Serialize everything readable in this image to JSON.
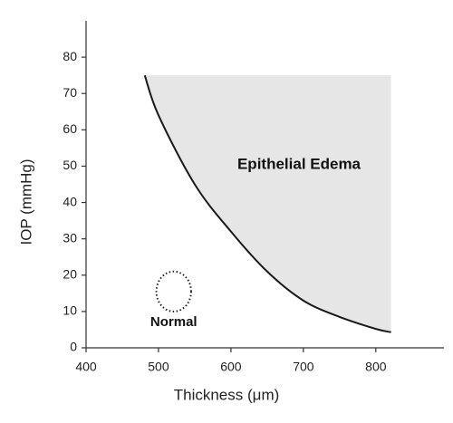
{
  "chart_data": {
    "type": "line",
    "x_label": "Thickness (μm)",
    "y_label": "IOP (mmHg)",
    "x": [
      481,
      500,
      550,
      600,
      650,
      700,
      750,
      800,
      821
    ],
    "values": [
      75,
      64,
      45,
      32,
      21,
      13,
      8.5,
      5.2,
      4.3
    ],
    "color": "#1a1a1a",
    "shade_top": 75,
    "shade_color": "#e6e6e6",
    "region_label": "Epithelial Edema",
    "normal_region": {
      "label": "Normal",
      "cx": 521,
      "cy": 15.5,
      "rx": 24,
      "ry": 5.5
    },
    "xlim": [
      400,
      894
    ],
    "ylim": [
      0,
      90
    ],
    "xticks": [
      400,
      500,
      600,
      700,
      800
    ],
    "yticks": [
      0,
      10,
      20,
      30,
      40,
      50,
      60,
      70,
      80
    ]
  }
}
